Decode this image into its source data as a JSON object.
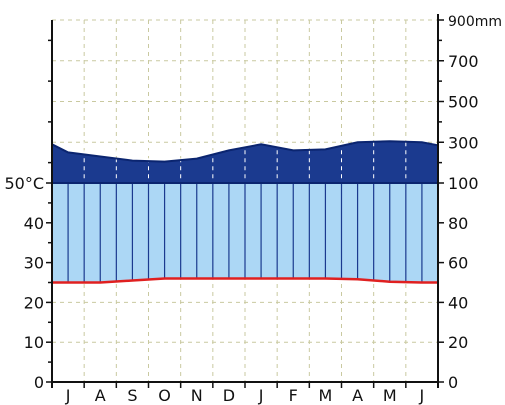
{
  "chart_data": {
    "type": "area",
    "subtype": "climate-diagram",
    "title": "",
    "categories": [
      "J",
      "A",
      "S",
      "O",
      "N",
      "D",
      "J",
      "F",
      "M",
      "A",
      "M",
      "J"
    ],
    "left_axis": {
      "ticks": [
        0,
        10,
        20,
        30,
        40,
        50
      ],
      "tick_labels": [
        "0",
        "10",
        "20",
        "30",
        "40",
        "50°C"
      ],
      "ylim": [
        0,
        50
      ]
    },
    "right_axis": {
      "ticks": [
        0,
        20,
        40,
        60,
        80,
        100,
        300,
        500,
        700,
        900
      ],
      "tick_labels": [
        "0",
        "20",
        "40",
        "60",
        "80",
        "100",
        "300",
        "500",
        "700",
        "900mm"
      ],
      "range": [
        0,
        900
      ],
      "scale": "0-100 mm linear on lower part, 100-900 mm compressed on upper part"
    },
    "series": [
      {
        "role": "temperature",
        "axis": "left",
        "color": "#e02020",
        "x": [
          0,
          0.5,
          1.5,
          2.5,
          3.5,
          4.5,
          5.5,
          6.5,
          7.5,
          8.5,
          9.5,
          10.5,
          11.5,
          12
        ],
        "values": [
          25.0,
          25.0,
          25.0,
          25.5,
          26.0,
          26.0,
          26.0,
          26.0,
          26.0,
          26.0,
          25.8,
          25.2,
          25.0,
          25.0
        ]
      },
      {
        "role": "precipitation",
        "axis": "right",
        "x": [
          0,
          0.5,
          1.5,
          2.5,
          3.5,
          4.5,
          5.5,
          6.5,
          7.5,
          8.5,
          9.5,
          10.5,
          11.5,
          12
        ],
        "values": [
          290,
          250,
          230,
          210,
          205,
          220,
          260,
          290,
          260,
          265,
          300,
          305,
          300,
          285
        ]
      }
    ],
    "colors": {
      "humid_area": "#acd7f5",
      "perhumid_area": "#1b3a8f",
      "temperature_line": "#e02020",
      "axis": "#111111"
    },
    "grid": true,
    "legend": "none"
  }
}
